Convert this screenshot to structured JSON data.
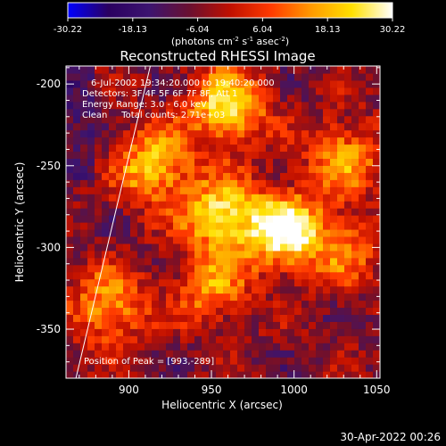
{
  "colorbar": {
    "ticks": [
      "-30.22",
      "-18.13",
      "-6.04",
      "6.04",
      "18.13",
      "30.22"
    ],
    "tick_values": [
      -30.22,
      -18.13,
      -6.04,
      6.04,
      18.13,
      30.22
    ],
    "range": [
      -30.22,
      30.22
    ],
    "unit_parts": [
      "(photons cm",
      "-2",
      " s",
      "-1",
      " asec",
      "-2",
      ")"
    ],
    "colors": [
      "#0000ff",
      "#2a0060",
      "#3c1470",
      "#6a1030",
      "#c01000",
      "#ff3a00",
      "#ff9a00",
      "#ffe000",
      "#ffffff"
    ]
  },
  "chart_data": {
    "type": "heatmap",
    "title": "Reconstructed RHESSI Image",
    "xlabel": "Heliocentric X (arcsec)",
    "ylabel": "Heliocentric Y (arcsec)",
    "xlim": [
      862,
      1052
    ],
    "ylim": [
      -380,
      -189
    ],
    "xticks": [
      900,
      950,
      1000,
      1050
    ],
    "yticks": [
      -200,
      -250,
      -300,
      -350
    ],
    "annotations": [
      "6-Jul-2002 19:34:20.000 to 19:40:20.000",
      "Detectors: 3F 4F 5F 6F 7F 8F, Att 1",
      "Energy Range: 3.0 - 6.0 keV",
      "Clean     Total counts: 2.71e+03"
    ],
    "peak_label": "Position of Peak = [993,-289]",
    "peak": [
      993,
      -289
    ],
    "limb_line": [
      [
        868,
        -380
      ],
      [
        913,
        -189
      ]
    ],
    "bright_sources": [
      {
        "x": 993,
        "y": -289,
        "value": 30.2
      },
      {
        "x": 955,
        "y": -280,
        "value": 22
      },
      {
        "x": 915,
        "y": -250,
        "value": 20
      },
      {
        "x": 960,
        "y": -214,
        "value": 24
      },
      {
        "x": 1030,
        "y": -244,
        "value": 14
      },
      {
        "x": 888,
        "y": -336,
        "value": 16
      },
      {
        "x": 950,
        "y": -325,
        "value": 12
      },
      {
        "x": 1030,
        "y": -300,
        "value": 10
      }
    ]
  },
  "footer": {
    "date": "30-Apr-2022 00:26"
  }
}
